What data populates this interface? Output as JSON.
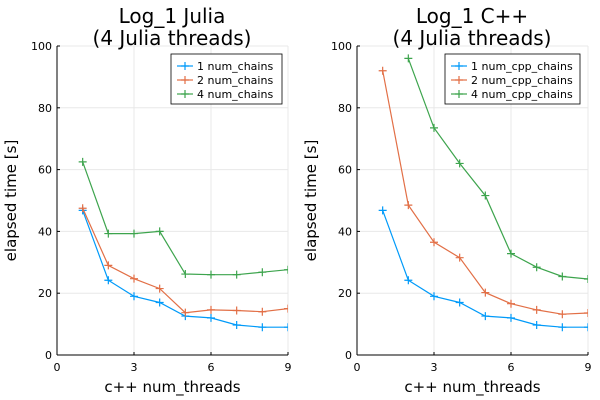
{
  "chart_data": [
    {
      "type": "line",
      "title": "Log_1 Julia\n(4 Julia threads)",
      "xlabel": "c++ num_threads",
      "ylabel": "elapsed time [s]",
      "xlim": [
        0,
        9
      ],
      "ylim": [
        0,
        100
      ],
      "xticks": [
        0,
        3,
        6,
        9
      ],
      "yticks": [
        0,
        20,
        40,
        60,
        80,
        100
      ],
      "grid": true,
      "legend": "top-right",
      "x": [
        1,
        2,
        3,
        4,
        5,
        6,
        7,
        8,
        9
      ],
      "series": [
        {
          "name": "1 num_chains",
          "color": "#009af9",
          "values": [
            46.8,
            24.2,
            19.0,
            17.0,
            12.6,
            12.0,
            9.7,
            9.0,
            9.0
          ]
        },
        {
          "name": "2 num_chains",
          "color": "#e26f46",
          "values": [
            47.5,
            29.0,
            24.7,
            21.5,
            13.7,
            14.6,
            14.4,
            14.0,
            15.0
          ]
        },
        {
          "name": "4 num_chains",
          "color": "#3da44d",
          "values": [
            62.5,
            39.3,
            39.3,
            40.0,
            26.2,
            26.0,
            26.0,
            26.8,
            27.6
          ]
        }
      ]
    },
    {
      "type": "line",
      "title": "Log_1 C++\n(4 Julia threads)",
      "xlabel": "c++ num_threads",
      "ylabel": "elapsed time [s]",
      "xlim": [
        0,
        9
      ],
      "ylim": [
        0,
        100
      ],
      "xticks": [
        0,
        3,
        6,
        9
      ],
      "yticks": [
        0,
        20,
        40,
        60,
        80,
        100
      ],
      "grid": true,
      "legend": "top-right",
      "x": [
        1,
        2,
        3,
        4,
        5,
        6,
        7,
        8,
        9
      ],
      "series": [
        {
          "name": "1 num_cpp_chains",
          "color": "#009af9",
          "values": [
            46.8,
            24.2,
            19.0,
            17.0,
            12.6,
            12.0,
            9.7,
            9.0,
            9.0
          ]
        },
        {
          "name": "2 num_cpp_chains",
          "color": "#e26f46",
          "values": [
            92.0,
            48.5,
            36.5,
            31.5,
            20.2,
            16.6,
            14.6,
            13.2,
            13.6
          ]
        },
        {
          "name": "4 num_cpp_chains",
          "color": "#3da44d",
          "values": [
            null,
            96.0,
            73.5,
            62.0,
            51.6,
            32.8,
            28.4,
            25.4,
            24.6
          ]
        }
      ]
    }
  ]
}
